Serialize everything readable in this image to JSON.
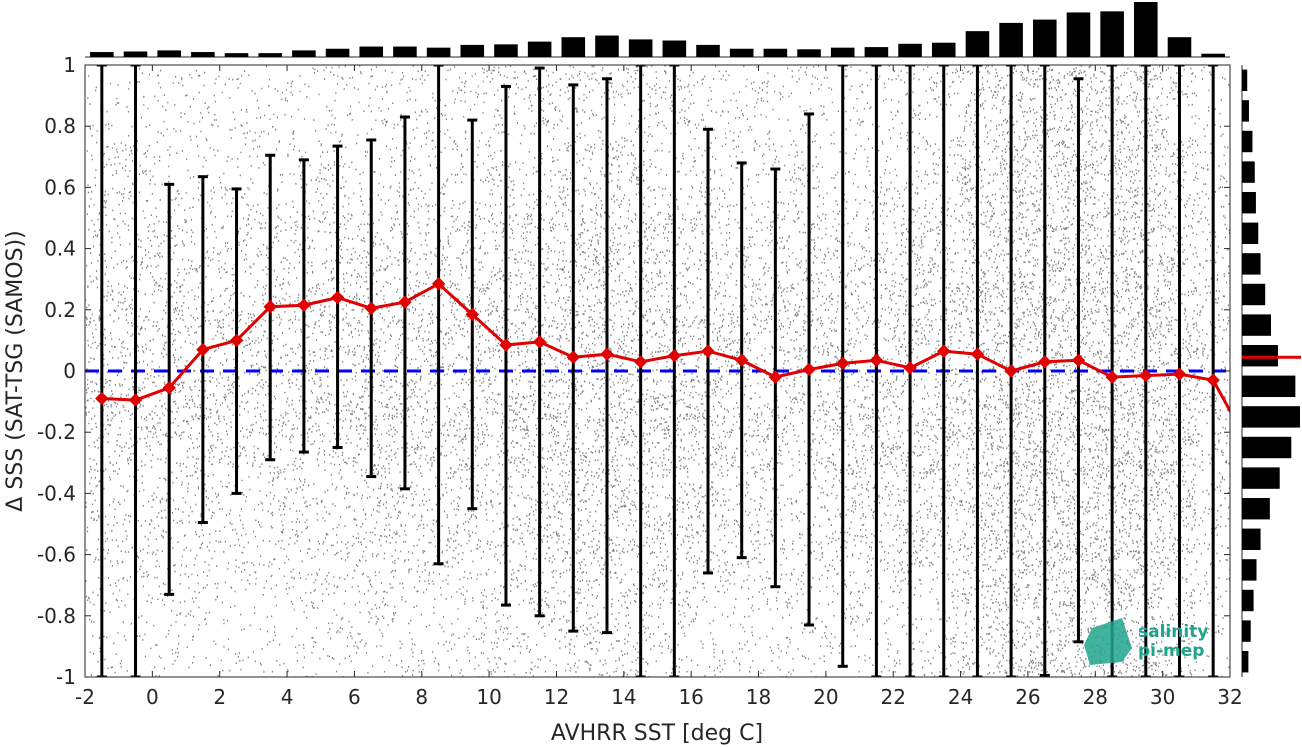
{
  "chart_data": {
    "type": "line",
    "xlabel": "AVHRR SST [deg C]",
    "ylabel": "Δ SSS (SAT-TSG (SAMOS))",
    "xlim": [
      -2,
      32
    ],
    "ylim": [
      -1,
      1
    ],
    "xticks": [
      "-2",
      "0",
      "2",
      "4",
      "6",
      "8",
      "10",
      "12",
      "14",
      "16",
      "18",
      "20",
      "22",
      "24",
      "26",
      "28",
      "30",
      "32"
    ],
    "yticks": [
      "-1",
      "-0.8",
      "-0.6",
      "-0.4",
      "-0.2",
      "0",
      "0.2",
      "0.4",
      "0.6",
      "0.8",
      "1"
    ],
    "grid": false,
    "reference_line": {
      "y": 0,
      "style": "dashed",
      "color": "#0000ff"
    },
    "series": [
      {
        "color": "#e00000",
        "x": [
          -1.5,
          -0.5,
          0.5,
          1.5,
          2.5,
          3.5,
          4.5,
          5.5,
          6.5,
          7.5,
          8.5,
          9.5,
          10.5,
          11.5,
          12.5,
          13.5,
          14.5,
          15.5,
          16.5,
          17.5,
          18.5,
          19.5,
          20.5,
          21.5,
          22.5,
          23.5,
          24.5,
          25.5,
          26.5,
          27.5,
          28.5,
          29.5,
          30.5,
          31.5
        ],
        "y": [
          -0.09,
          -0.095,
          -0.055,
          0.07,
          0.1,
          0.21,
          0.215,
          0.24,
          0.205,
          0.225,
          0.285,
          0.185,
          0.085,
          0.095,
          0.045,
          0.055,
          0.03,
          0.05,
          0.065,
          0.035,
          -0.02,
          0.005,
          0.025,
          0.035,
          0.01,
          0.065,
          0.055,
          0.0,
          0.03,
          0.035,
          -0.02,
          -0.015,
          -0.01,
          -0.03
        ]
      }
    ],
    "error_bars": {
      "x": [
        -1.5,
        -0.5,
        0.5,
        1.5,
        2.5,
        3.5,
        4.5,
        5.5,
        6.5,
        7.5,
        8.5,
        9.5,
        10.5,
        11.5,
        12.5,
        13.5,
        14.5,
        15.5,
        16.5,
        17.5,
        18.5,
        19.5,
        20.5,
        21.5,
        22.5,
        23.5,
        24.5,
        25.5,
        26.5,
        27.5,
        28.5,
        29.5,
        30.5,
        31.5
      ],
      "low": [
        -1,
        -1,
        -0.73,
        -0.495,
        -0.4,
        -0.29,
        -0.265,
        -0.25,
        -0.345,
        -0.385,
        -0.63,
        -0.45,
        -0.765,
        -0.8,
        -0.85,
        -0.855,
        -1,
        -1,
        -0.66,
        -0.61,
        -0.705,
        -0.83,
        -0.965,
        -1,
        -1,
        -1,
        -1,
        -1,
        -0.995,
        -0.885,
        -1,
        -1,
        -1,
        -1
      ],
      "high": [
        1,
        1,
        0.61,
        0.635,
        0.595,
        0.705,
        0.69,
        0.735,
        0.755,
        0.83,
        1,
        0.82,
        0.93,
        0.99,
        0.935,
        0.955,
        1,
        1,
        0.79,
        0.68,
        0.66,
        0.84,
        1,
        1,
        1,
        1,
        1,
        1,
        1,
        0.955,
        1,
        1,
        1,
        1
      ]
    },
    "top_histogram": {
      "x": [
        -1.5,
        -0.5,
        0.5,
        1.5,
        2.5,
        3.5,
        4.5,
        5.5,
        6.5,
        7.5,
        8.5,
        9.5,
        10.5,
        11.5,
        12.5,
        13.5,
        14.5,
        15.5,
        16.5,
        17.5,
        18.5,
        19.5,
        20.5,
        21.5,
        22.5,
        23.5,
        24.5,
        25.5,
        26.5,
        27.5,
        28.5,
        29.5,
        30.5,
        31.5
      ],
      "counts": [
        0.09,
        0.1,
        0.12,
        0.09,
        0.07,
        0.07,
        0.12,
        0.15,
        0.19,
        0.19,
        0.17,
        0.22,
        0.23,
        0.28,
        0.36,
        0.39,
        0.32,
        0.3,
        0.22,
        0.15,
        0.15,
        0.14,
        0.17,
        0.18,
        0.24,
        0.26,
        0.47,
        0.62,
        0.68,
        0.81,
        0.83,
        1.0,
        0.36,
        0.06
      ]
    },
    "right_histogram": {
      "y": [
        0.95,
        0.85,
        0.75,
        0.65,
        0.55,
        0.45,
        0.35,
        0.25,
        0.15,
        0.05,
        -0.05,
        -0.15,
        -0.25,
        -0.35,
        -0.45,
        -0.55,
        -0.65,
        -0.75,
        -0.85,
        -0.95
      ],
      "counts": [
        0.09,
        0.12,
        0.18,
        0.22,
        0.24,
        0.28,
        0.32,
        0.4,
        0.5,
        0.62,
        0.92,
        1.0,
        0.85,
        0.65,
        0.48,
        0.32,
        0.25,
        0.2,
        0.15,
        0.11
      ]
    },
    "right_histogram_mean_line": {
      "y": 0.045,
      "color": "#e00000"
    },
    "scatter": {
      "color": "#808080",
      "description_free": true
    }
  },
  "logo": {
    "line1": "salinity",
    "line2": "pi-mep",
    "color": "#1fa58c"
  }
}
